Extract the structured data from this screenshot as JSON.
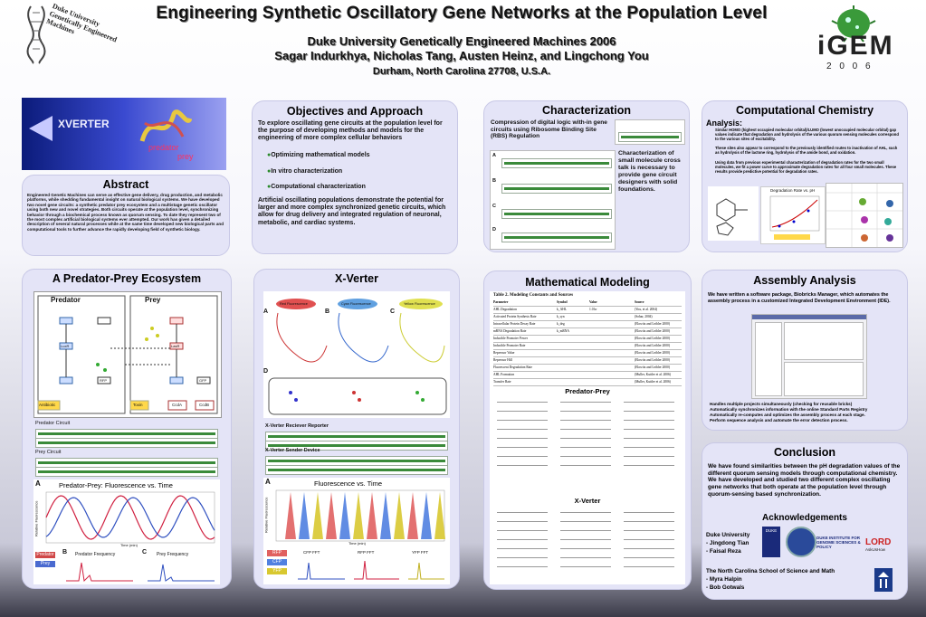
{
  "header": {
    "title": "Engineering Synthetic Oscillatory Gene Networks at the Population Level",
    "org": "Duke  University Genetically Engineered Machines 2006",
    "authors": "Sagar Indurkhya, Nicholas Tang, Austen Heinz, and Lingchong You",
    "location": "Durham,  North Carolina  27708,  U.S.A.",
    "left_logo_text": "Duke University Genetically Engineered Machines",
    "igem": "iGEM",
    "igem_year": "2 0 0 6"
  },
  "banner": {
    "xverter": "XVERTER",
    "predator": "predator",
    "prey": "prey"
  },
  "abstract": {
    "title": "Abstract",
    "body": "Engineered Genetic Machines can serve as effective gene delivery, drug production, and metabolic platforms, while shedding fundamental insight on natural biological systems. We have developed two novel gene circuits: a synthetic predator prey ecosystem and a multistage genetic oscillator using both new and novel strategies. Both circuits operate at the population level, synchronizing behavior through a biochemical process known as quorum sensing. To date they represent two of the most complex artificial biological systems ever attempted. Our work has given a detailed description of several natural processes while at the same time developed new biological parts and computational tools to further advance the rapidly developing field of synthetic biology."
  },
  "objectives": {
    "title": "Objectives and Approach",
    "intro": "To explore oscillating gene circuits at the population level for the purpose of developing methods and models for the engineering of more complex cellular behaviors",
    "bullets": [
      "Optimizing mathematical models",
      "In vitro characterization",
      "Computational characterization"
    ],
    "outro": "Artificial oscillating populations demonstrate the potential for larger and more complex synchronized genetic circuits, which allow for drug delivery and integrated regulation of neuronal, metabolic, and cardiac systems."
  },
  "characterization": {
    "title": "Characterization",
    "intro": "Compression of digital logic with-in gene circuits using Ribosome Binding Site (RBS) Regulation",
    "side": "Characterization of small molecule cross talk is necessary to provide gene circuit designers with solid foundations.",
    "labels": [
      "A",
      "B",
      "C",
      "D"
    ]
  },
  "comp_chem": {
    "title": "Computational Chemistry",
    "analysis": "Analysis:",
    "bullets": [
      "Similar HOMO (highest occupied molecular orbital)/LUMO (lowest unoccupied molecular orbital) gap values indicate that degradation and hydrolysis of the various quorum sensing molecules correspond to the various sites of excitability.",
      "These sites also appear to correspond to the previously identified routes to inactivation of AHL, such as hydrolysis of the lactone ring, hydrolysis of the amide bond, and oxidation.",
      "Using data from previous experimental characterization of degradation rates for the two small molecules, we fit a power curve to approximate degradation rates for all four small molecules. These results provide predictive potential for degradation rates."
    ],
    "plot_title": "Degradation Rate vs. pH"
  },
  "predator_prey": {
    "title": "A Predator-Prey Ecosystem",
    "predator": "Predator",
    "prey": "Prey",
    "predator_circuit": "Predator Circuit",
    "prey_circuit": "Prey Circuit",
    "plot_title": "Predator-Prey: Fluorescence vs. Time",
    "plot_ylabel": "Relative Fluorescence",
    "plot_xlabel": "Time (min)",
    "freq_pred": "Predator Frequency",
    "freq_prey": "Prey Frequency",
    "legend": [
      "Predator",
      "Prey"
    ],
    "labels": [
      "A",
      "B",
      "C"
    ],
    "nodes": [
      "Antibiotic",
      "Toxin",
      "CcdA",
      "CcdB",
      "LuxR",
      "LasR",
      "GFP",
      "RFP"
    ]
  },
  "xverter": {
    "title": "X-Verter",
    "receiver": "X-Verter Reciever Reporter",
    "sender": "X-Verter Sender Device",
    "fluor": [
      "Red Fluorescence",
      "Cyan Fluorescence",
      "Yellow Fluorescence"
    ],
    "plot_title": "Fluorescence vs. Time",
    "plot_xlabel": "Time (min)",
    "plot_ylabel": "Relative Fluorescence",
    "legend": [
      "RFP",
      "CFP",
      "YFP"
    ],
    "fft": [
      "CFP FFT",
      "RFP FFT",
      "YFP FFT"
    ],
    "labels": [
      "A",
      "B",
      "C",
      "D"
    ]
  },
  "math": {
    "title": "Mathematical Modeling",
    "table_caption": "Table 2. Modeling Constants and Sources",
    "columns": [
      "Parameter",
      "Symbol",
      "Value",
      "Source"
    ],
    "rows": [
      [
        "AHL Degradation",
        "k_AHL",
        "1.0 hr",
        "(You, et al. 2004)"
      ],
      [
        "Activated Protein Synthesis Rate",
        "k_syn",
        "",
        "(Sohar, 2004)"
      ],
      [
        "Intracellular Protein Decay Rate",
        "k_deg",
        "",
        "(Elowitz and Leibler 2000)"
      ],
      [
        "mRNA Degradation Rate",
        "k_mRNA",
        "",
        "(Elowitz and Leibler 2000)"
      ],
      [
        "Inducible Promoter Power",
        "",
        "",
        "(Elowitz and Leibler 2000)"
      ],
      [
        "Inducible Promoter Rate",
        "",
        "",
        "(Elowitz and Leibler 2000)"
      ],
      [
        "Repressor Value",
        "",
        "",
        "(Elowitz and Leibler 2000)"
      ],
      [
        "Repressor Hill",
        "",
        "",
        "(Elowitz and Leibler 2000)"
      ],
      [
        "Fluorescent Degradation Rate",
        "",
        "",
        "(Elowitz and Leibler 2000)"
      ],
      [
        "AHL Formation",
        "",
        "",
        "(Muller, Kuttler et al. 2006)"
      ],
      [
        "Transfer Rate",
        "",
        "",
        "(Muller, Kuttler et al. 2006)"
      ]
    ],
    "pp_label": "Predator-Prey",
    "xv_label": "X-Verter"
  },
  "assembly": {
    "title": "Assembly Analysis",
    "intro": "We have written a software package, Biobricks Manager, which automates the assembly process in a customized Integrated Development Environment (IDE).",
    "bullets": [
      "Handles multiple projects simultaneously (checking for reusable bricks)",
      "Automatically synchronizes information with the online Standard Parts Registry",
      "Automatically re-computes and optimizes the assembly process at each stage.",
      "Perform sequence analysis and automate the error detection process."
    ]
  },
  "conclusion": {
    "title": "Conclusion",
    "body": "We have found similarities between the pH degradation values of the different quorum sensing models through computational chemistry. We have developed and studied two different complex oscillating gene networks that both operate at the population level through quorum-sensing based synchronization.",
    "ack_title": "Acknowledgements",
    "ack1": [
      "Duke University",
      "- Jingdong Tian",
      "- Faisal Reza"
    ],
    "ack2": [
      "The North Carolina School of Science and Math",
      "- Myra Halpin",
      "- Bob Gotwals"
    ],
    "logos": [
      "DUKE",
      "DUKE INSTITUTE FOR GENOME SCIENCES & POLICY",
      "LORD",
      "AskUsHow"
    ]
  }
}
